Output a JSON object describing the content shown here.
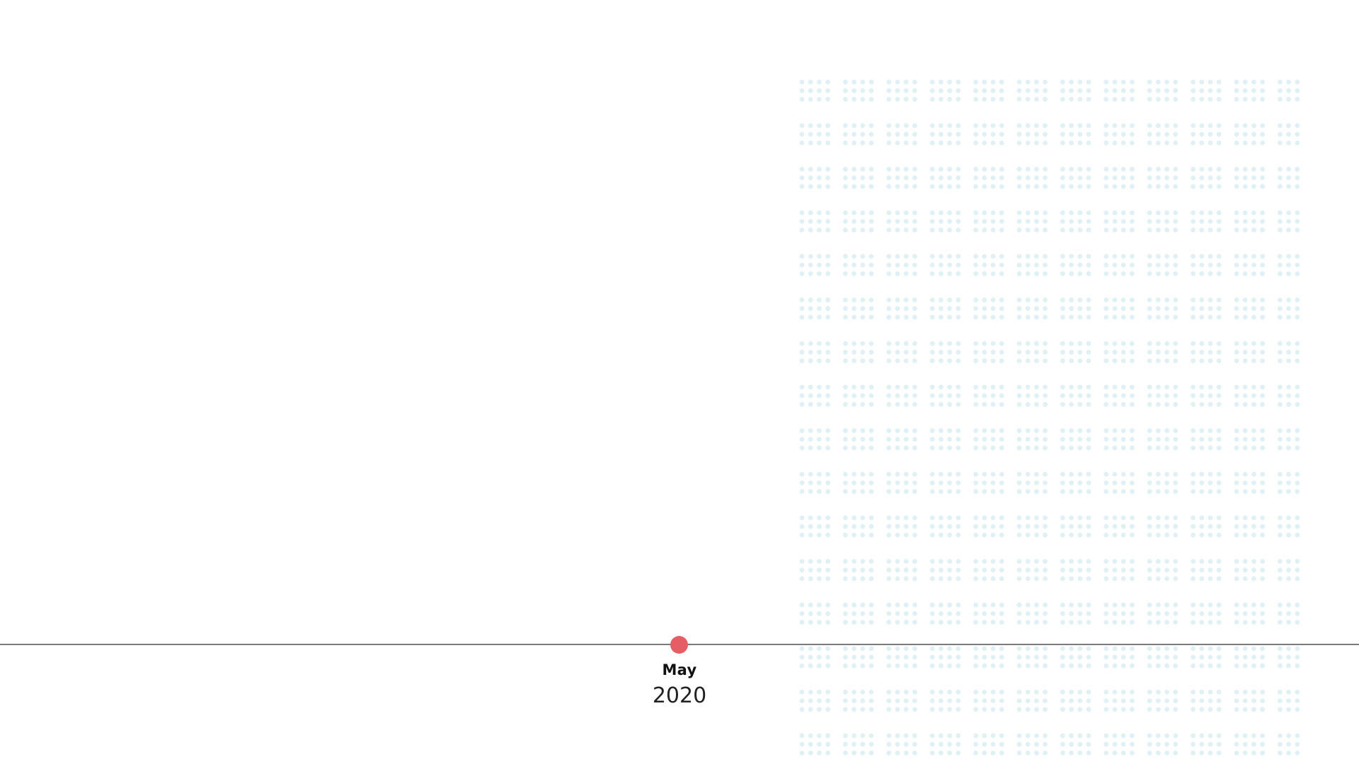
{
  "timeline": {
    "event": {
      "month": "May",
      "year": "2020"
    }
  },
  "colors": {
    "marker": "#e55e66",
    "line": "#7a7a7a",
    "dots": "#dff1f4"
  },
  "icons": {
    "marker": "timeline-point-icon"
  }
}
